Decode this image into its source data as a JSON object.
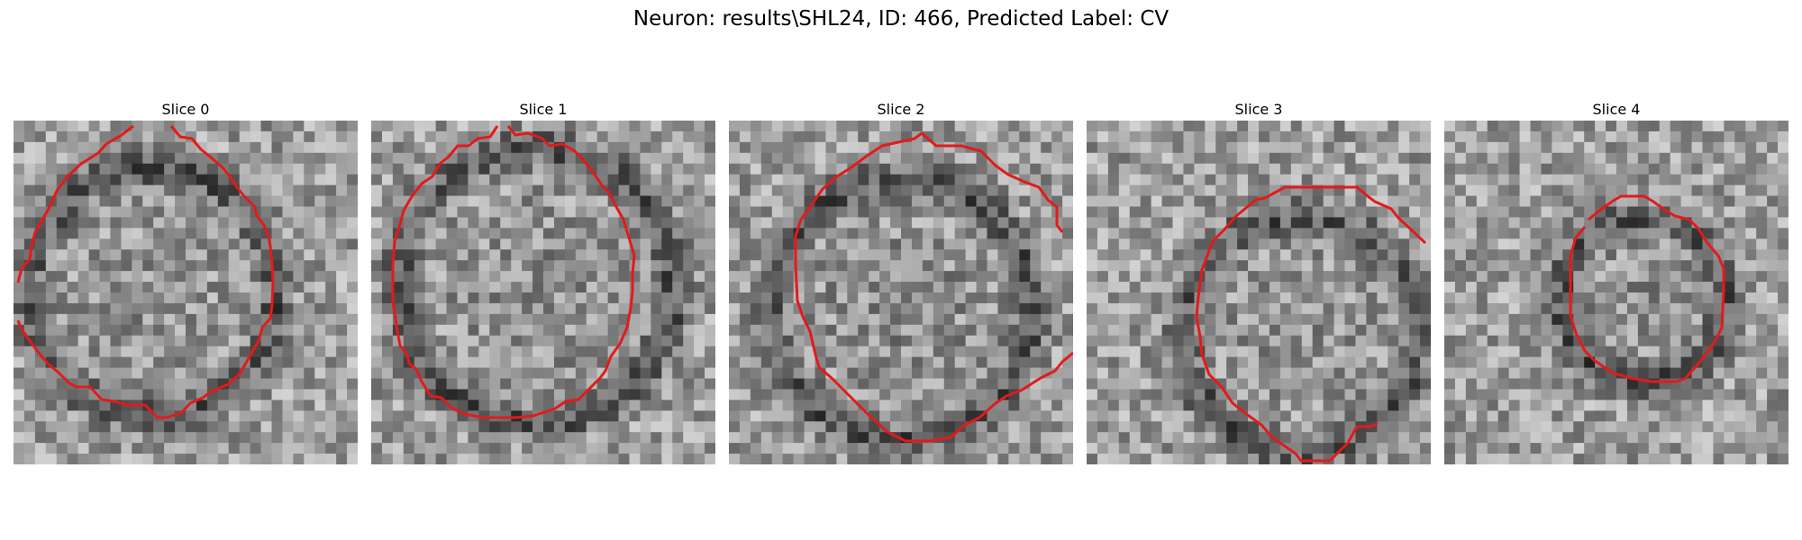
{
  "figure": {
    "title": "Neuron: results\\SHL24, ID: 466, Predicted Label: CV"
  },
  "panels": [
    {
      "title": "Slice 0",
      "contour_color": "#e31a1c"
    },
    {
      "title": "Slice 1",
      "contour_color": "#e31a1c"
    },
    {
      "title": "Slice 2",
      "contour_color": "#e31a1c"
    },
    {
      "title": "Slice 3",
      "contour_color": "#e31a1c"
    },
    {
      "title": "Slice 4",
      "contour_color": "#e31a1c"
    }
  ],
  "colors": {
    "contour": "#e31a1c",
    "background": "#ffffff"
  }
}
